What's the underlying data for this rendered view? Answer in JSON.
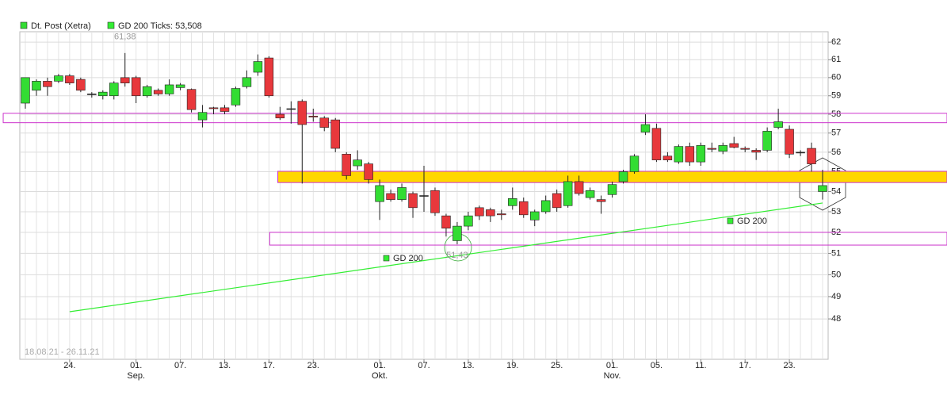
{
  "chart_data": {
    "type": "candlestick",
    "date_range": "18.08.21 - 26.11.21",
    "log_scale": true,
    "grid": true,
    "categories": [
      null,
      null,
      null,
      null,
      "24.",
      null,
      null,
      null,
      null,
      null,
      "01.",
      null,
      null,
      null,
      "07.",
      null,
      null,
      null,
      "13.",
      null,
      null,
      null,
      "17.",
      null,
      null,
      null,
      "23.",
      null,
      null,
      null,
      null,
      null,
      "01.",
      null,
      null,
      null,
      "07.",
      null,
      null,
      null,
      "13.",
      null,
      null,
      null,
      "19.",
      null,
      null,
      null,
      "25.",
      null,
      null,
      null,
      null,
      "01.",
      null,
      null,
      null,
      "05.",
      null,
      null,
      null,
      "11.",
      null,
      null,
      null,
      "17.",
      null,
      null,
      null,
      "23.",
      null,
      null,
      null
    ],
    "months": [
      null,
      null,
      null,
      null,
      null,
      null,
      null,
      null,
      null,
      null,
      "Sep.",
      null,
      null,
      null,
      null,
      null,
      null,
      null,
      null,
      null,
      null,
      null,
      null,
      null,
      null,
      null,
      null,
      null,
      null,
      null,
      null,
      null,
      "Okt.",
      null,
      null,
      null,
      null,
      null,
      null,
      null,
      null,
      null,
      null,
      null,
      null,
      null,
      null,
      null,
      null,
      null,
      null,
      null,
      null,
      "Nov.",
      null,
      null,
      null,
      null,
      null,
      null,
      null,
      null,
      null,
      null,
      null,
      null,
      null,
      null,
      null,
      null,
      null,
      null,
      null
    ],
    "ylim": [
      46.24,
      62.6
    ],
    "yticks": [
      48,
      49,
      50,
      51,
      52,
      53,
      54,
      55,
      56,
      57,
      58,
      59,
      60,
      61,
      62
    ],
    "series": [
      {
        "name": "Dt. Post (Xetra)",
        "up_color": "#33dd33",
        "down_color": "#e8383c",
        "flat_color": "#222222",
        "open": [
          58.6,
          59.3,
          59.8,
          59.8,
          60.1,
          59.9,
          59.1,
          59.0,
          59.0,
          60.0,
          60.0,
          59.0,
          59.3,
          59.1,
          59.45,
          59.35,
          57.7,
          58.35,
          58.35,
          58.5,
          59.5,
          60.3,
          61.1,
          58.0,
          58.3,
          58.7,
          57.9,
          57.8,
          57.7,
          55.9,
          55.3,
          55.4,
          53.5,
          53.9,
          53.6,
          53.9,
          53.8,
          54.05,
          52.8,
          51.6,
          52.3,
          53.2,
          53.1,
          52.9,
          53.3,
          53.5,
          52.6,
          53.0,
          53.9,
          53.3,
          54.5,
          53.7,
          53.6,
          53.85,
          54.5,
          55.0,
          57.05,
          57.25,
          55.8,
          55.5,
          56.3,
          55.5,
          56.2,
          56.05,
          56.45,
          56.2,
          56.1,
          56.1,
          57.3,
          57.2,
          56.0,
          56.2,
          54.0
        ],
        "high": [
          60.0,
          59.9,
          60.0,
          60.2,
          60.2,
          60.0,
          59.2,
          59.3,
          59.8,
          61.38,
          60.1,
          59.6,
          59.4,
          59.9,
          59.7,
          59.4,
          58.5,
          58.4,
          58.5,
          59.5,
          60.4,
          61.3,
          61.2,
          58.4,
          58.7,
          58.8,
          58.3,
          57.9,
          57.8,
          56.0,
          56.1,
          55.5,
          54.6,
          54.1,
          54.4,
          54.0,
          55.3,
          54.2,
          52.9,
          52.5,
          53.0,
          53.3,
          53.2,
          53.1,
          54.2,
          53.7,
          53.1,
          53.8,
          54.1,
          54.8,
          54.8,
          54.2,
          53.8,
          54.5,
          55.1,
          55.9,
          58.0,
          57.5,
          56.0,
          56.4,
          56.5,
          56.5,
          56.5,
          56.5,
          56.8,
          56.3,
          56.2,
          57.3,
          58.3,
          57.4,
          56.1,
          56.5,
          55.1
        ],
        "low": [
          58.3,
          59.0,
          59.0,
          59.7,
          59.6,
          59.2,
          58.9,
          58.8,
          58.8,
          59.5,
          58.6,
          58.9,
          59.0,
          59.0,
          59.3,
          58.1,
          57.3,
          58.0,
          58.0,
          58.4,
          59.4,
          60.1,
          58.9,
          57.7,
          57.5,
          54.4,
          57.6,
          57.1,
          56.0,
          54.6,
          55.1,
          54.4,
          52.6,
          53.5,
          53.5,
          52.7,
          53.0,
          52.8,
          51.8,
          51.43,
          52.1,
          52.6,
          52.5,
          52.6,
          53.1,
          52.7,
          52.3,
          52.9,
          53.0,
          53.2,
          53.8,
          53.6,
          52.9,
          53.7,
          54.4,
          54.9,
          56.9,
          55.5,
          55.5,
          55.4,
          55.3,
          55.3,
          56.0,
          55.9,
          56.2,
          56.0,
          55.6,
          56.0,
          57.2,
          55.7,
          55.8,
          55.0,
          53.6
        ],
        "close": [
          60.0,
          59.8,
          59.5,
          60.1,
          59.7,
          59.3,
          59.1,
          59.2,
          59.7,
          59.7,
          59.0,
          59.5,
          59.1,
          59.6,
          59.6,
          58.25,
          58.1,
          58.3,
          58.15,
          59.4,
          60.0,
          60.9,
          59.0,
          57.8,
          58.3,
          57.45,
          57.85,
          57.3,
          56.2,
          54.8,
          55.6,
          54.6,
          54.3,
          53.6,
          54.2,
          53.2,
          53.8,
          52.95,
          52.2,
          52.3,
          52.8,
          52.8,
          52.8,
          52.85,
          53.65,
          52.85,
          53.0,
          53.55,
          53.2,
          54.5,
          53.9,
          54.05,
          53.5,
          54.35,
          55.0,
          55.8,
          57.45,
          55.6,
          55.6,
          56.3,
          55.5,
          56.35,
          56.15,
          56.35,
          56.25,
          56.15,
          56.0,
          57.1,
          57.6,
          55.9,
          56.0,
          55.4,
          54.3
        ]
      },
      {
        "name": "GD 200",
        "legend_label": "GD 200 Ticks: 53,508",
        "color": "#33ee33",
        "x": [
          4,
          72
        ],
        "values": [
          48.32,
          53.43
        ]
      }
    ],
    "zones": [
      {
        "from": 57.55,
        "to": 58.05,
        "start": -2,
        "fill": "none",
        "stroke": "#cc33cc"
      },
      {
        "from": 54.45,
        "to": 55.02,
        "start": 22.8,
        "fill": "#ffd700",
        "stroke": "#cc33cc"
      },
      {
        "from": 51.39,
        "to": 52.0,
        "start": 22.07,
        "fill": "none",
        "stroke": "#cc33cc"
      }
    ],
    "annotations": [
      {
        "label": "61,38",
        "value": 61.38,
        "at": 9
      },
      {
        "label": "51,43",
        "value": 51.43,
        "at": 39
      }
    ]
  }
}
